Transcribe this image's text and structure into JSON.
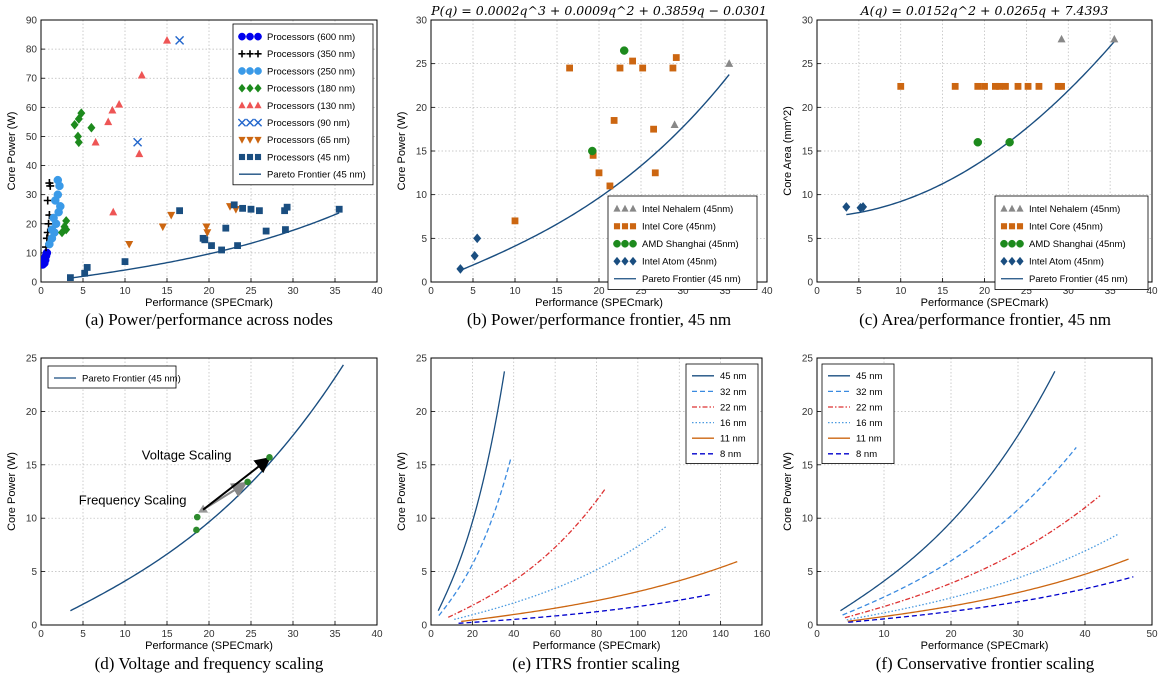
{
  "figure": {
    "captions": [
      "(a) Power/performance across nodes",
      "(b) Power/performance frontier, 45 nm",
      "(c) Area/performance frontier, 45 nm",
      "(d) Voltage and frequency scaling",
      "(e) ITRS frontier scaling",
      "(f) Conservative frontier scaling"
    ]
  },
  "colors": {
    "navy": "#1a4e80",
    "blue600": "#0000ee",
    "black": "#000000",
    "skyblue": "#3a9ae8",
    "green": "#1d8a1d",
    "salmon": "#ee5555",
    "xblue": "#2266cc",
    "orange": "#cc6611",
    "gray": "#888888",
    "darkgreen": "#2c8a2c",
    "dotred": "#dd3333",
    "dotblue": "#4a9ae0",
    "dashnavy": "#0000cc"
  },
  "chart_data": [
    {
      "id": "a",
      "type": "scatter",
      "title": "",
      "xlabel": "Performance (SPECmark)",
      "ylabel": "Core Power (W)",
      "xlim": [
        0,
        40
      ],
      "ylim": [
        0,
        90
      ],
      "xticks": [
        0,
        5,
        10,
        15,
        20,
        25,
        30,
        35,
        40
      ],
      "yticks": [
        0,
        10,
        20,
        30,
        40,
        50,
        60,
        70,
        80,
        90
      ],
      "legend": "top-right",
      "series": [
        {
          "name": "Processors (600 nm)",
          "marker": "circle",
          "color": "#0000ee",
          "points": [
            [
              0.2,
              6
            ],
            [
              0.3,
              7
            ],
            [
              0.4,
              8
            ],
            [
              0.5,
              7.5
            ],
            [
              0.6,
              9
            ],
            [
              0.7,
              10
            ],
            [
              0.4,
              6.5
            ]
          ]
        },
        {
          "name": "Processors (350 nm)",
          "marker": "plus",
          "color": "#000000",
          "points": [
            [
              0.6,
              12
            ],
            [
              0.7,
              15
            ],
            [
              0.8,
              17
            ],
            [
              0.9,
              20
            ],
            [
              1.0,
              23
            ],
            [
              0.8,
              28
            ],
            [
              1.1,
              33
            ],
            [
              1.0,
              34
            ]
          ]
        },
        {
          "name": "Processors (250 nm)",
          "marker": "circle",
          "color": "#3a9ae8",
          "points": [
            [
              1.0,
              13
            ],
            [
              1.3,
              15
            ],
            [
              1.6,
              17
            ],
            [
              1.8,
              20
            ],
            [
              1.5,
              22
            ],
            [
              2.1,
              24
            ],
            [
              2.3,
              26
            ],
            [
              1.7,
              28
            ],
            [
              2.0,
              30
            ],
            [
              2.2,
              33
            ],
            [
              2.0,
              35
            ],
            [
              1.3,
              18
            ]
          ]
        },
        {
          "name": "Processors (180 nm)",
          "marker": "diamond",
          "color": "#1d8a1d",
          "points": [
            [
              2.5,
              17
            ],
            [
              2.8,
              19
            ],
            [
              3.0,
              21
            ],
            [
              3.0,
              18
            ],
            [
              4.5,
              48
            ],
            [
              4.4,
              50
            ],
            [
              4.0,
              54
            ],
            [
              4.5,
              56
            ],
            [
              4.8,
              58
            ],
            [
              6.0,
              53
            ]
          ]
        },
        {
          "name": "Processors (130 nm)",
          "marker": "triangle",
          "color": "#ee5555",
          "points": [
            [
              6.5,
              48
            ],
            [
              8.0,
              55
            ],
            [
              8.5,
              59
            ],
            [
              9.3,
              61
            ],
            [
              11.7,
              44
            ],
            [
              12.0,
              71
            ],
            [
              15.0,
              83
            ],
            [
              8.6,
              24
            ]
          ]
        },
        {
          "name": "Processors (90 nm)",
          "marker": "x",
          "color": "#2266cc",
          "points": [
            [
              11.5,
              48
            ],
            [
              16.5,
              83
            ]
          ]
        },
        {
          "name": "Processors (65 nm)",
          "marker": "triangle-down",
          "color": "#cc6611",
          "points": [
            [
              10.5,
              13
            ],
            [
              14.5,
              19
            ],
            [
              15.5,
              23
            ],
            [
              19.7,
              19
            ],
            [
              19.8,
              17
            ],
            [
              22.5,
              26
            ],
            [
              23.2,
              25
            ]
          ]
        },
        {
          "name": "Processors (45 nm)",
          "marker": "square",
          "color": "#1a4e80",
          "points": [
            [
              3.5,
              1.5
            ],
            [
              5.2,
              3
            ],
            [
              5.5,
              5
            ],
            [
              10.0,
              7
            ],
            [
              16.5,
              24.5
            ],
            [
              19.3,
              15
            ],
            [
              19.5,
              14.5
            ],
            [
              20.3,
              12.5
            ],
            [
              21.5,
              11
            ],
            [
              22.0,
              18.5
            ],
            [
              23.0,
              26.5
            ],
            [
              24.0,
              25.3
            ],
            [
              25.0,
              25
            ],
            [
              26.0,
              24.5
            ],
            [
              26.8,
              17.5
            ],
            [
              29.0,
              24.5
            ],
            [
              29.3,
              25.7
            ],
            [
              23.4,
              12.5
            ],
            [
              29.1,
              18
            ],
            [
              35.5,
              25
            ]
          ]
        }
      ],
      "frontier": {
        "name": "Pareto Frontier (45 nm)",
        "coeffs": [
          0.0002,
          0.0009,
          0.3859,
          -0.0301
        ],
        "x_range": [
          3.5,
          35.5
        ]
      }
    },
    {
      "id": "b",
      "type": "scatter",
      "title": "P(q) = 0.0002q^3 + 0.0009q^2 + 0.3859q − 0.0301",
      "xlabel": "Performance (SPECmark)",
      "ylabel": "Core Power (W)",
      "xlim": [
        0,
        40
      ],
      "ylim": [
        0,
        30
      ],
      "xticks": [
        0,
        5,
        10,
        15,
        20,
        25,
        30,
        35,
        40
      ],
      "yticks": [
        0,
        5,
        10,
        15,
        20,
        25,
        30
      ],
      "legend": "bottom-right",
      "series": [
        {
          "name": "Intel Nehalem (45nm)",
          "marker": "triangle",
          "color": "#888888",
          "points": [
            [
              29.0,
              18
            ],
            [
              35.5,
              25
            ]
          ]
        },
        {
          "name": "Intel Core (45nm)",
          "marker": "square",
          "color": "#cc6611",
          "points": [
            [
              10.0,
              7
            ],
            [
              16.5,
              24.5
            ],
            [
              19.3,
              14.5
            ],
            [
              20.0,
              12.5
            ],
            [
              21.3,
              11
            ],
            [
              21.8,
              18.5
            ],
            [
              22.5,
              24.5
            ],
            [
              24.0,
              25.3
            ],
            [
              25.2,
              24.5
            ],
            [
              26.5,
              17.5
            ],
            [
              26.7,
              12.5
            ],
            [
              28.8,
              24.5
            ],
            [
              29.2,
              25.7
            ]
          ]
        },
        {
          "name": "AMD Shanghai (45nm)",
          "marker": "circle",
          "color": "#1d8a1d",
          "points": [
            [
              19.2,
              15
            ],
            [
              23.0,
              26.5
            ]
          ]
        },
        {
          "name": "Intel Atom (45nm)",
          "marker": "diamond",
          "color": "#1a4e80",
          "points": [
            [
              3.5,
              1.5
            ],
            [
              5.2,
              3
            ],
            [
              5.5,
              5
            ]
          ]
        }
      ],
      "frontier": {
        "name": "Pareto Frontier (45 nm)",
        "coeffs": [
          0.0002,
          0.0009,
          0.3859,
          -0.0301
        ],
        "x_range": [
          3.5,
          35.5
        ]
      }
    },
    {
      "id": "c",
      "type": "scatter",
      "title": "A(q) = 0.0152q^2 + 0.0265q + 7.4393",
      "xlabel": "Performance (SPECmark)",
      "ylabel": "Core Area (mm^2)",
      "xlim": [
        0,
        40
      ],
      "ylim": [
        0,
        30
      ],
      "xticks": [
        0,
        5,
        10,
        15,
        20,
        25,
        30,
        35,
        40
      ],
      "yticks": [
        0,
        5,
        10,
        15,
        20,
        25,
        30
      ],
      "legend": "bottom-right",
      "series": [
        {
          "name": "Intel Nehalem (45nm)",
          "marker": "triangle",
          "color": "#888888",
          "points": [
            [
              29.2,
              27.8
            ],
            [
              35.5,
              27.8
            ]
          ]
        },
        {
          "name": "Intel Core (45nm)",
          "marker": "square",
          "color": "#cc6611",
          "points": [
            [
              10.0,
              22.4
            ],
            [
              16.5,
              22.4
            ],
            [
              19.2,
              22.4
            ],
            [
              20.0,
              22.4
            ],
            [
              21.3,
              22.4
            ],
            [
              21.8,
              22.4
            ],
            [
              22.5,
              22.4
            ],
            [
              24.0,
              22.4
            ],
            [
              25.2,
              22.4
            ],
            [
              26.5,
              22.4
            ],
            [
              28.8,
              22.4
            ],
            [
              29.2,
              22.4
            ]
          ]
        },
        {
          "name": "AMD Shanghai (45nm)",
          "marker": "circle",
          "color": "#1d8a1d",
          "points": [
            [
              19.2,
              16
            ],
            [
              23.0,
              16
            ]
          ]
        },
        {
          "name": "Intel Atom (45nm)",
          "marker": "diamond",
          "color": "#1a4e80",
          "points": [
            [
              3.5,
              8.6
            ],
            [
              5.2,
              8.5
            ],
            [
              5.5,
              8.6
            ]
          ]
        }
      ],
      "frontier": {
        "name": "Pareto Frontier (45 nm)",
        "coeffs": [
          0,
          0.0152,
          0.0265,
          7.4393
        ],
        "x_range": [
          3.5,
          35.5
        ]
      }
    },
    {
      "id": "d",
      "type": "line",
      "title": "",
      "xlabel": "Performance (SPECmark)",
      "ylabel": "Core Power (W)",
      "xlim": [
        0,
        40
      ],
      "ylim": [
        0,
        25
      ],
      "xticks": [
        0,
        5,
        10,
        15,
        20,
        25,
        30,
        35,
        40
      ],
      "yticks": [
        0,
        5,
        10,
        15,
        20,
        25
      ],
      "legend": "top-left",
      "frontier": {
        "name": "Pareto Frontier (45 nm)",
        "coeffs": [
          0.0002,
          0.0009,
          0.3859,
          -0.0301
        ],
        "x_range": [
          3.5,
          36
        ]
      },
      "points": [
        [
          18.5,
          8.9
        ],
        [
          18.6,
          10.1
        ],
        [
          24.6,
          13.4
        ],
        [
          27.2,
          15.7
        ]
      ],
      "start_point": [
        19.3,
        10.8
      ],
      "annotations": [
        {
          "text": "Voltage Scaling",
          "x": 12,
          "y": 15.5
        },
        {
          "text": "Frequency Scaling",
          "x": 4.5,
          "y": 11.3
        }
      ]
    },
    {
      "id": "e",
      "type": "line",
      "title": "",
      "xlabel": "Performance (SPECmark)",
      "ylabel": "Core Power (W)",
      "xlim": [
        0,
        160
      ],
      "ylim": [
        0,
        25
      ],
      "xticks": [
        0,
        20,
        40,
        60,
        80,
        100,
        120,
        140,
        160
      ],
      "yticks": [
        0,
        5,
        10,
        15,
        20,
        25
      ],
      "legend": "top-right",
      "series": [
        {
          "name": "45 nm",
          "style": "solid",
          "color": "#1a4e80",
          "qscale": 1.0,
          "pscale": 1.0,
          "qmax": 35.5
        },
        {
          "name": "32 nm",
          "style": "dashed",
          "color": "#3a8ae0",
          "qscale": 1.09,
          "pscale": 0.66,
          "qmax": 35.5
        },
        {
          "name": "22 nm",
          "style": "dashdot",
          "color": "#dd3333",
          "qscale": 2.38,
          "pscale": 0.54,
          "qmax": 35.5
        },
        {
          "name": "16 nm",
          "style": "dotted",
          "color": "#4a9ae0",
          "qscale": 3.21,
          "pscale": 0.39,
          "qmax": 35.5
        },
        {
          "name": "11 nm",
          "style": "solid",
          "color": "#cc6611",
          "qscale": 4.17,
          "pscale": 0.25,
          "qmax": 35.5
        },
        {
          "name": "8 nm",
          "style": "dashed",
          "color": "#0000cc",
          "qscale": 3.8,
          "pscale": 0.12,
          "qmax": 35.5
        }
      ]
    },
    {
      "id": "f",
      "type": "line",
      "title": "",
      "xlabel": "Performance (SPECmark)",
      "ylabel": "Core Power (W)",
      "xlim": [
        0,
        50
      ],
      "ylim": [
        0,
        25
      ],
      "xticks": [
        0,
        10,
        20,
        30,
        40,
        50
      ],
      "yticks": [
        0,
        5,
        10,
        15,
        20,
        25
      ],
      "legend": "top-left",
      "series": [
        {
          "name": "45 nm",
          "style": "solid",
          "color": "#1a4e80",
          "qscale": 1.0,
          "pscale": 1.0,
          "qmax": 35.5
        },
        {
          "name": "32 nm",
          "style": "dashed",
          "color": "#3a8ae0",
          "qscale": 1.09,
          "pscale": 0.7,
          "qmax": 35.5
        },
        {
          "name": "22 nm",
          "style": "dashdot",
          "color": "#dd3333",
          "qscale": 1.19,
          "pscale": 0.51,
          "qmax": 35.5
        },
        {
          "name": "16 nm",
          "style": "dotted",
          "color": "#4a9ae0",
          "qscale": 1.27,
          "pscale": 0.36,
          "qmax": 35.5
        },
        {
          "name": "11 nm",
          "style": "solid",
          "color": "#cc6611",
          "qscale": 1.31,
          "pscale": 0.26,
          "qmax": 35.5
        },
        {
          "name": "8 nm",
          "style": "dashed",
          "color": "#0000cc",
          "qscale": 1.33,
          "pscale": 0.19,
          "qmax": 35.5
        }
      ]
    }
  ]
}
